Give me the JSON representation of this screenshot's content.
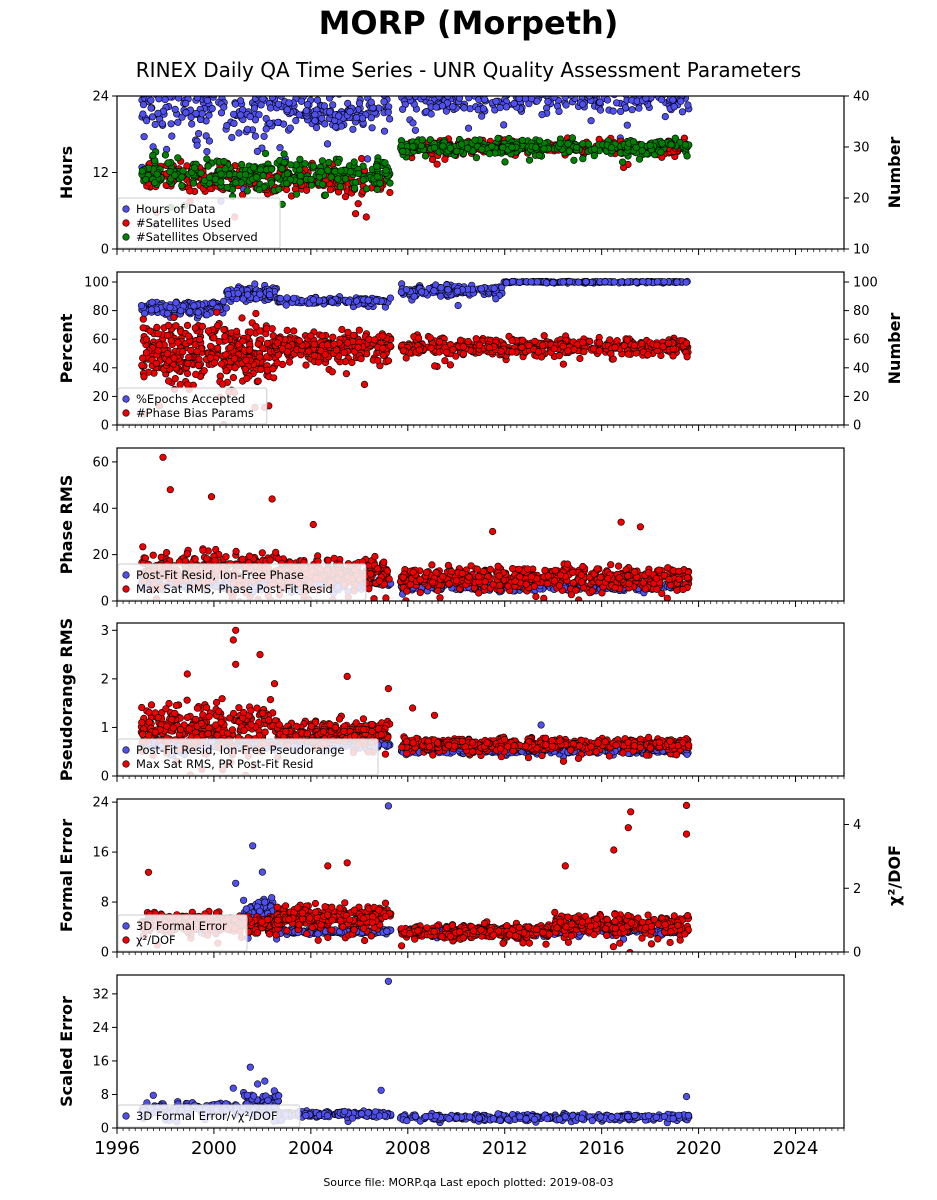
{
  "page": {
    "title": "MORP (Morpeth)",
    "subtitle": "RINEX Daily QA Time Series - UNR Quality Assessment Parameters",
    "footer": "Source file: MORP.qa Last epoch plotted: 2019-08-03"
  },
  "colors": {
    "blue": "#5050ee",
    "red": "#ee0000",
    "green": "#008000",
    "edge": "#000000"
  },
  "chart_data": [
    {
      "type": "scatter",
      "ylabel": "Hours",
      "y2label": "Number",
      "ylim": [
        0,
        24
      ],
      "y2lim": [
        10,
        40
      ],
      "yticks": [
        0,
        12,
        24
      ],
      "y2ticks": [
        10,
        20,
        30,
        40
      ],
      "xlim": [
        1996,
        2026
      ],
      "xticks": [
        1996,
        2000,
        2004,
        2008,
        2012,
        2016,
        2020,
        2024
      ],
      "legend_position": "lower-left",
      "series": [
        {
          "name": "Hours of Data",
          "color": "blue",
          "axis": "left",
          "segments": [
            {
              "x": [
                1997.0,
                2002.6
              ],
              "y": 23.8,
              "spread": 5.0,
              "n": 260
            },
            {
              "x": [
                2002.6,
                2007.3
              ],
              "y": 21.8,
              "spread": 2.5,
              "n": 150
            },
            {
              "x": [
                2007.7,
                2019.6
              ],
              "y": 23.8,
              "spread": 2.0,
              "n": 330
            }
          ]
        },
        {
          "name": "#Satellites Used",
          "color": "red",
          "axis": "right",
          "segments": [
            {
              "x": [
                1997.0,
                2007.3
              ],
              "y": 24.0,
              "spread": 2.5,
              "n": 260
            },
            {
              "x": [
                2007.7,
                2019.6
              ],
              "y": 30.0,
              "spread": 1.2,
              "n": 230
            }
          ]
        },
        {
          "name": "#Satellites Observed",
          "color": "green",
          "axis": "right",
          "segments": [
            {
              "x": [
                1997.0,
                2007.3
              ],
              "y": 25.0,
              "spread": 2.5,
              "n": 300
            },
            {
              "x": [
                2007.7,
                2019.6
              ],
              "y": 30.0,
              "spread": 1.2,
              "n": 330
            }
          ]
        }
      ]
    },
    {
      "type": "scatter",
      "ylabel": "Percent",
      "y2label": "Number",
      "ylim": [
        0,
        107
      ],
      "y2lim": [
        0,
        107
      ],
      "yticks": [
        0,
        20,
        40,
        60,
        80,
        100
      ],
      "y2ticks": [
        0,
        20,
        40,
        60,
        80,
        100
      ],
      "xlim": [
        1996,
        2026
      ],
      "xticks": [
        1996,
        2000,
        2004,
        2008,
        2012,
        2016,
        2020,
        2024
      ],
      "legend_position": "lower-left",
      "series": [
        {
          "name": "%Epochs Accepted",
          "color": "blue",
          "axis": "left",
          "segments": [
            {
              "x": [
                1997.0,
                2000.5
              ],
              "y": 82,
              "spread": 4,
              "n": 120
            },
            {
              "x": [
                2000.5,
                2002.6
              ],
              "y": 92,
              "spread": 4,
              "n": 90
            },
            {
              "x": [
                2002.6,
                2007.3
              ],
              "y": 87,
              "spread": 2,
              "n": 140
            },
            {
              "x": [
                2007.7,
                2011.9
              ],
              "y": 94,
              "spread": 3,
              "n": 140
            },
            {
              "x": [
                2011.9,
                2019.6
              ],
              "y": 100,
              "spread": 0.3,
              "n": 200
            }
          ]
        },
        {
          "name": "#Phase Bias Params",
          "color": "red",
          "axis": "right",
          "segments": [
            {
              "x": [
                1997.0,
                2002.5
              ],
              "y": 52,
              "spread": 18,
              "n": 360
            },
            {
              "x": [
                2002.5,
                2007.3
              ],
              "y": 55,
              "spread": 8,
              "n": 260
            },
            {
              "x": [
                2007.7,
                2019.6
              ],
              "y": 55,
              "spread": 5,
              "n": 460
            }
          ]
        }
      ]
    },
    {
      "type": "scatter",
      "ylabel": "Phase RMS",
      "ylim": [
        0,
        66
      ],
      "yticks": [
        0,
        20,
        40,
        60
      ],
      "xlim": [
        1996,
        2026
      ],
      "xticks": [
        1996,
        2000,
        2004,
        2008,
        2012,
        2016,
        2020,
        2024
      ],
      "legend_position": "lower-left",
      "series": [
        {
          "name": "Post-Fit Resid, Ion-Free Phase",
          "color": "blue",
          "axis": "left",
          "segments": [
            {
              "x": [
                1997.0,
                2007.3
              ],
              "y": 7,
              "spread": 1.5,
              "n": 200
            },
            {
              "x": [
                2007.7,
                2019.6
              ],
              "y": 6,
              "spread": 1.2,
              "n": 260
            }
          ]
        },
        {
          "name": "Max Sat RMS, Phase Post-Fit Resid",
          "color": "red",
          "axis": "left",
          "segments": [
            {
              "x": [
                1997.0,
                2002.6
              ],
              "y": 14,
              "spread": 6,
              "n": 300
            },
            {
              "x": [
                2002.6,
                2007.3
              ],
              "y": 12,
              "spread": 5,
              "n": 260
            },
            {
              "x": [
                2007.7,
                2019.6
              ],
              "y": 10,
              "spread": 4,
              "n": 520
            }
          ],
          "outliers": [
            [
              1997.9,
              62
            ],
            [
              1998.2,
              48
            ],
            [
              1999.9,
              45
            ],
            [
              2002.4,
              44
            ],
            [
              2004.1,
              33
            ],
            [
              2016.8,
              34
            ],
            [
              2017.6,
              32
            ],
            [
              2011.5,
              30
            ]
          ]
        }
      ]
    },
    {
      "type": "scatter",
      "ylabel": "Pseudorange RMS",
      "ylim": [
        0,
        3.15
      ],
      "yticks": [
        0,
        1,
        2,
        3
      ],
      "xlim": [
        1996,
        2026
      ],
      "xticks": [
        1996,
        2000,
        2004,
        2008,
        2012,
        2016,
        2020,
        2024
      ],
      "legend_position": "lower-left",
      "series": [
        {
          "name": "Post-Fit Resid, Ion-Free Pseudorange",
          "color": "blue",
          "axis": "left",
          "segments": [
            {
              "x": [
                1997.0,
                2007.3
              ],
              "y": 0.65,
              "spread": 0.08,
              "n": 200
            },
            {
              "x": [
                2007.7,
                2019.6
              ],
              "y": 0.52,
              "spread": 0.05,
              "n": 260
            }
          ],
          "outliers": [
            [
              2013.5,
              1.05
            ]
          ]
        },
        {
          "name": "Max Sat RMS, PR Post-Fit Resid",
          "color": "red",
          "axis": "left",
          "segments": [
            {
              "x": [
                1997.0,
                2002.6
              ],
              "y": 1.0,
              "spread": 0.4,
              "n": 300
            },
            {
              "x": [
                2002.6,
                2007.3
              ],
              "y": 0.9,
              "spread": 0.2,
              "n": 260
            },
            {
              "x": [
                2007.7,
                2019.6
              ],
              "y": 0.65,
              "spread": 0.1,
              "n": 520
            }
          ],
          "outliers": [
            [
              2000.9,
              3.0
            ],
            [
              2000.8,
              2.8
            ],
            [
              2001.9,
              2.5
            ],
            [
              2000.9,
              2.3
            ],
            [
              2005.5,
              2.05
            ],
            [
              1998.9,
              2.1
            ],
            [
              2002.5,
              1.9
            ],
            [
              2007.2,
              1.8
            ],
            [
              2008.2,
              1.4
            ],
            [
              2009.1,
              1.25
            ]
          ]
        }
      ]
    },
    {
      "type": "scatter",
      "ylabel": "Formal Error",
      "y2label": "χ²/DOF",
      "ylim": [
        0,
        24.5
      ],
      "y2lim": [
        0,
        4.8
      ],
      "yticks": [
        0,
        8,
        16,
        24
      ],
      "y2ticks": [
        0,
        2,
        4
      ],
      "xlim": [
        1996,
        2026
      ],
      "xticks": [
        1996,
        2000,
        2004,
        2008,
        2012,
        2016,
        2020,
        2024
      ],
      "legend_position": "lower-left",
      "series": [
        {
          "name": "3D Formal Error",
          "color": "blue",
          "axis": "left",
          "segments": [
            {
              "x": [
                1997.0,
                2001.2
              ],
              "y": 4.5,
              "spread": 0.8,
              "n": 150
            },
            {
              "x": [
                2001.2,
                2002.7
              ],
              "y": 6.5,
              "spread": 2.0,
              "n": 80
            },
            {
              "x": [
                2002.7,
                2007.3
              ],
              "y": 3.3,
              "spread": 0.3,
              "n": 150
            },
            {
              "x": [
                2007.7,
                2019.6
              ],
              "y": 3.4,
              "spread": 0.4,
              "n": 260
            }
          ],
          "outliers": [
            [
              2007.2,
              23.4
            ],
            [
              2001.6,
              17.0
            ],
            [
              2002.0,
              12.8
            ],
            [
              2000.9,
              11.0
            ]
          ]
        },
        {
          "name": "χ²/DOF",
          "color": "red",
          "axis": "right",
          "segments": [
            {
              "x": [
                1997.0,
                2002.6
              ],
              "y": 0.9,
              "spread": 0.25,
              "n": 300
            },
            {
              "x": [
                2002.6,
                2007.3
              ],
              "y": 1.1,
              "spread": 0.3,
              "n": 260
            },
            {
              "x": [
                2007.7,
                2014.0
              ],
              "y": 0.65,
              "spread": 0.18,
              "n": 260
            },
            {
              "x": [
                2014.0,
                2019.6
              ],
              "y": 0.85,
              "spread": 0.25,
              "n": 260
            }
          ],
          "outliers": [
            [
              2019.5,
              4.6
            ],
            [
              2017.2,
              4.4
            ],
            [
              2017.1,
              3.9
            ],
            [
              2019.5,
              3.7
            ],
            [
              2016.5,
              3.2
            ],
            [
              2014.5,
              2.7
            ],
            [
              2005.5,
              2.8
            ],
            [
              2004.7,
              2.7
            ],
            [
              1997.3,
              2.5
            ]
          ]
        }
      ]
    },
    {
      "type": "scatter",
      "ylabel": "Scaled Error",
      "ylim": [
        0,
        36.5
      ],
      "yticks": [
        0,
        8,
        16,
        24,
        32
      ],
      "xlim": [
        1996,
        2026
      ],
      "xticks": [
        1996,
        2000,
        2004,
        2008,
        2012,
        2016,
        2020,
        2024
      ],
      "legend_position": "lower-left",
      "series": [
        {
          "name": "3D Formal Error/√χ²/DOF",
          "color": "blue",
          "axis": "left",
          "segments": [
            {
              "x": [
                1997.0,
                2001.2
              ],
              "y": 4.5,
              "spread": 1.2,
              "n": 150
            },
            {
              "x": [
                2001.2,
                2002.7
              ],
              "y": 6.0,
              "spread": 2.0,
              "n": 80
            },
            {
              "x": [
                2002.7,
                2007.3
              ],
              "y": 3.3,
              "spread": 0.6,
              "n": 160
            },
            {
              "x": [
                2007.7,
                2019.6
              ],
              "y": 2.6,
              "spread": 0.6,
              "n": 300
            }
          ],
          "outliers": [
            [
              2007.2,
              35.0
            ],
            [
              2001.5,
              14.5
            ],
            [
              2002.1,
              11.2
            ],
            [
              2001.8,
              10.5
            ],
            [
              2000.8,
              9.5
            ],
            [
              2006.9,
              9.0
            ],
            [
              2019.5,
              7.5
            ],
            [
              1997.5,
              7.8
            ]
          ]
        }
      ]
    }
  ]
}
